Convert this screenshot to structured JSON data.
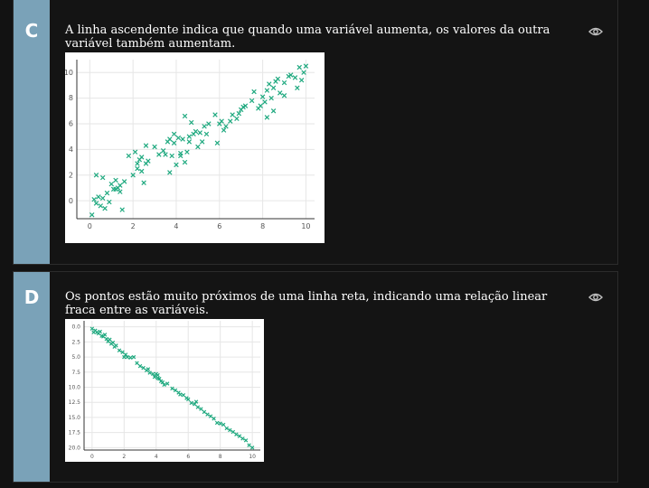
{
  "options": [
    {
      "letter": "C",
      "text": "A linha ascendente indica que quando uma variável aumenta, os valores da outra variável também aumentam.",
      "icon": "eye-icon"
    },
    {
      "letter": "D",
      "text": "Os pontos estão muito próximos de uma linha reta, indicando uma relação linear fraca entre as variáveis.",
      "icon": "eye-icon"
    }
  ],
  "colors": {
    "strip": "#7aa2b8",
    "marker": "#1fa97f",
    "background": "#121212"
  },
  "chart_data": [
    {
      "type": "scatter",
      "marker": "x",
      "title": "",
      "xlabel": "",
      "ylabel": "",
      "xlim": [
        -0.6,
        10.4
      ],
      "ylim": [
        11.0,
        -1.4
      ],
      "xticks": [
        0,
        2,
        4,
        6,
        8,
        10
      ],
      "yticks": [
        0,
        2,
        4,
        6,
        8,
        10
      ],
      "grid": true,
      "x": [
        0.1,
        0.2,
        0.3,
        0.4,
        0.5,
        0.6,
        0.7,
        0.8,
        0.9,
        1.0,
        1.1,
        1.2,
        1.3,
        1.4,
        1.5,
        1.6,
        0.3,
        0.6,
        1.2,
        1.4,
        2.0,
        2.1,
        2.2,
        2.3,
        2.4,
        2.5,
        2.6,
        2.7,
        1.8,
        2.2,
        2.4,
        2.6,
        3.0,
        3.2,
        3.4,
        3.5,
        3.6,
        3.7,
        3.8,
        3.9,
        4.0,
        4.1,
        4.2,
        4.3,
        4.4,
        4.5,
        4.6,
        4.7,
        4.8,
        4.9,
        5.0,
        5.1,
        3.7,
        3.9,
        4.2,
        4.4,
        4.6,
        5.2,
        5.3,
        5.4,
        5.5,
        5.8,
        5.9,
        6.0,
        6.1,
        6.2,
        6.3,
        6.5,
        6.6,
        6.8,
        6.9,
        7.0,
        7.1,
        7.2,
        7.5,
        7.6,
        7.8,
        7.9,
        8.0,
        8.1,
        8.2,
        8.3,
        8.4,
        8.5,
        8.6,
        8.7,
        8.8,
        9.0,
        9.2,
        9.3,
        9.5,
        9.6,
        9.7,
        9.8,
        9.9,
        10.0,
        8.2,
        8.5,
        9.0
      ],
      "y": [
        -1.1,
        0.1,
        -0.2,
        0.3,
        -0.4,
        0.2,
        -0.6,
        0.6,
        -0.1,
        1.3,
        0.9,
        1.6,
        1.0,
        0.7,
        -0.7,
        1.5,
        2.0,
        1.8,
        0.9,
        1.2,
        2.0,
        3.8,
        2.5,
        3.2,
        2.3,
        1.4,
        4.3,
        3.1,
        3.5,
        2.9,
        3.4,
        2.9,
        4.2,
        3.6,
        3.9,
        3.6,
        4.6,
        2.2,
        3.5,
        4.5,
        2.8,
        4.9,
        3.5,
        4.8,
        3.0,
        3.8,
        5.0,
        6.1,
        5.2,
        5.4,
        4.2,
        5.3,
        4.8,
        5.2,
        3.7,
        6.6,
        4.6,
        4.6,
        5.8,
        5.2,
        6.0,
        6.7,
        4.5,
        6.0,
        6.2,
        5.5,
        5.8,
        6.2,
        6.7,
        6.4,
        6.8,
        7.1,
        7.3,
        7.4,
        7.8,
        8.5,
        7.2,
        7.4,
        8.1,
        7.7,
        8.6,
        9.1,
        8.0,
        8.8,
        9.3,
        9.5,
        8.4,
        9.2,
        9.7,
        9.8,
        9.6,
        8.8,
        10.4,
        9.4,
        10.0,
        10.5,
        6.5,
        7.0,
        8.2
      ]
    },
    {
      "type": "scatter",
      "marker": "x",
      "title": "",
      "xlabel": "",
      "ylabel": "",
      "xlim": [
        -0.5,
        10.5
      ],
      "ylim": [
        -1.0,
        20.4
      ],
      "xticks": [
        0,
        2,
        4,
        6,
        8,
        10
      ],
      "yticks": [
        0.0,
        2.5,
        5.0,
        7.5,
        10.0,
        12.5,
        15.0,
        17.5,
        20.0
      ],
      "grid": true,
      "x": [
        0.0,
        0.1,
        0.2,
        0.3,
        0.4,
        0.5,
        0.6,
        0.7,
        0.8,
        0.9,
        1.0,
        1.1,
        1.2,
        1.3,
        1.4,
        1.5,
        1.7,
        1.9,
        2.0,
        2.1,
        2.2,
        2.4,
        2.6,
        2.8,
        3.0,
        3.2,
        3.4,
        3.5,
        3.6,
        3.8,
        3.9,
        4.0,
        4.1,
        4.2,
        4.3,
        4.5,
        4.7,
        5.0,
        5.2,
        5.4,
        5.5,
        5.7,
        5.9,
        6.0,
        6.2,
        6.4,
        6.6,
        6.8,
        7.0,
        7.2,
        7.4,
        7.6,
        7.8,
        8.0,
        8.2,
        8.4,
        8.6,
        8.8,
        9.0,
        9.2,
        9.4,
        9.6,
        9.8,
        10.0,
        4.1,
        4.4,
        6.5
      ],
      "y": [
        0.3,
        0.9,
        0.6,
        0.9,
        1.1,
        0.8,
        1.5,
        1.6,
        1.3,
        2.0,
        2.4,
        2.1,
        2.8,
        2.6,
        3.3,
        3.1,
        3.9,
        4.2,
        5.0,
        4.6,
        5.0,
        5.1,
        5.0,
        6.0,
        6.5,
        6.8,
        7.2,
        7.0,
        7.6,
        7.8,
        8.3,
        7.8,
        8.5,
        8.6,
        9.0,
        9.6,
        9.4,
        10.2,
        10.5,
        10.9,
        11.2,
        11.3,
        11.8,
        12.0,
        12.6,
        12.8,
        13.3,
        13.6,
        14.1,
        14.5,
        14.8,
        15.2,
        15.9,
        16.0,
        16.2,
        16.8,
        17.1,
        17.4,
        17.8,
        18.1,
        18.5,
        18.8,
        19.6,
        20.0,
        8.0,
        9.2,
        12.4
      ]
    }
  ]
}
